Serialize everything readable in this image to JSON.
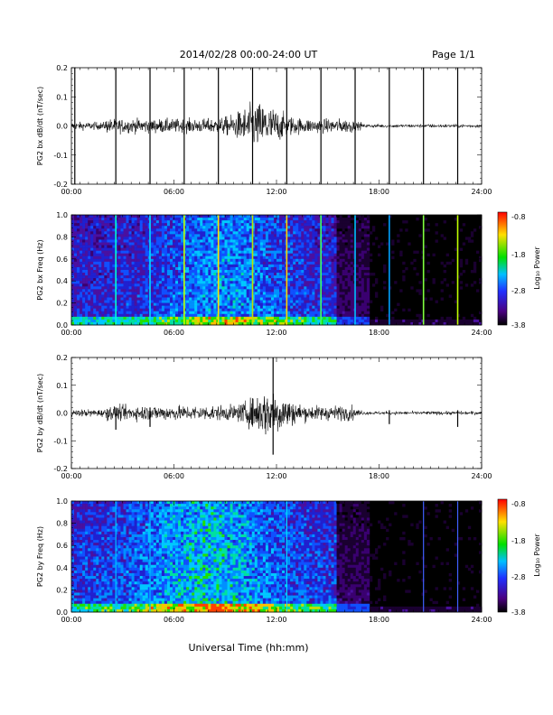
{
  "header": {
    "date_range": "2014/02/28  00:00-24:00 UT",
    "page": "Page 1/1"
  },
  "footer": {
    "xlabel": "Universal Time (hh:mm)"
  },
  "x_ticks": [
    "00:00",
    "06:00",
    "12:00",
    "18:00",
    "24:00"
  ],
  "colorbar": {
    "label": "Log₁₀ Power",
    "ticks": [
      "-0.8",
      "-1.8",
      "-2.8",
      "-3.8"
    ],
    "range": [
      -3.8,
      -0.8
    ]
  },
  "chart_data": [
    {
      "type": "line",
      "ylabel": "PG2 bx dB/dt (nT/sec)",
      "xlim": [
        0,
        24
      ],
      "ylim": [
        -0.2,
        0.2
      ],
      "yticks": [
        "0.2",
        "0.1",
        "0.0",
        "-0.1",
        "-0.2"
      ],
      "description_values": {
        "baseline": 0.0,
        "spike_times_hr": [
          0.2,
          2.6,
          4.6,
          6.6,
          8.6,
          10.6,
          12.6,
          14.6,
          16.6,
          18.6,
          20.6,
          22.6
        ],
        "peak_activity_hr": 11.0,
        "peak_amplitude": 0.18
      }
    },
    {
      "type": "heatmap",
      "ylabel": "PG2 bx Freq (Hz)",
      "xlim": [
        0,
        24
      ],
      "ylim": [
        0.0,
        1.0
      ],
      "yticks": [
        "1.0",
        "0.8",
        "0.6",
        "0.4",
        "0.2",
        "0.0"
      ],
      "colorbar_label": "Log₁₀ Power",
      "colorbar_range": [
        -3.8,
        -0.8
      ]
    },
    {
      "type": "line",
      "ylabel": "PG2 by dB/dt (nT/sec)",
      "xlim": [
        0,
        24
      ],
      "ylim": [
        -0.2,
        0.2
      ],
      "yticks": [
        "0.2",
        "0.1",
        "0.0",
        "-0.1",
        "-0.2"
      ],
      "description_values": {
        "baseline": 0.0,
        "peak_activity_hr": 11.8,
        "peak_amplitude": 0.2
      }
    },
    {
      "type": "heatmap",
      "ylabel": "PG2 by Freq (Hz)",
      "xlim": [
        0,
        24
      ],
      "ylim": [
        0.0,
        1.0
      ],
      "yticks": [
        "1.0",
        "0.8",
        "0.6",
        "0.4",
        "0.2",
        "0.0"
      ],
      "colorbar_label": "Log₁₀ Power",
      "colorbar_range": [
        -3.8,
        -0.8
      ]
    }
  ],
  "colors": {
    "trace": "#000000",
    "background": "#ffffff",
    "spectrogram_bg": "#000000"
  }
}
